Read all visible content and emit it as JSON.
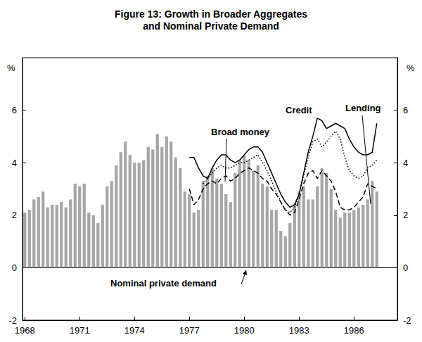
{
  "chart_data": {
    "type": "bar",
    "title": "Figure 13: Growth in Broader Aggregates\nand Nominal Private Demand",
    "categories": [
      "1968",
      null,
      null,
      null,
      null,
      null,
      null,
      null,
      null,
      null,
      null,
      null,
      "1971",
      null,
      null,
      null,
      null,
      null,
      null,
      null,
      null,
      null,
      null,
      null,
      "1974",
      null,
      null,
      null,
      null,
      null,
      null,
      null,
      null,
      null,
      null,
      null,
      "1977",
      null,
      null,
      null,
      null,
      null,
      null,
      null,
      null,
      null,
      null,
      null,
      "1980",
      null,
      null,
      null,
      null,
      null,
      null,
      null,
      null,
      null,
      null,
      null,
      "1983",
      null,
      null,
      null,
      null,
      null,
      null,
      null,
      null,
      null,
      null,
      null,
      "1986",
      null,
      null,
      null,
      null,
      null,
      null,
      null,
      null,
      null
    ],
    "series": [
      {
        "name": "Nominal private demand",
        "type": "bar",
        "color": "#a6a6a6",
        "values": [
          2.1,
          2.2,
          2.6,
          2.7,
          2.9,
          2.3,
          2.4,
          2.4,
          2.5,
          2.3,
          2.6,
          3.2,
          3.1,
          3.2,
          2.1,
          2.0,
          1.7,
          2.4,
          3.1,
          3.3,
          3.9,
          4.4,
          4.8,
          4.3,
          4.0,
          4.0,
          4.1,
          4.6,
          4.5,
          5.1,
          4.6,
          5.0,
          4.8,
          4.2,
          3.8,
          2.9,
          2.8,
          2.1,
          2.2,
          3.3,
          3.5,
          3.8,
          3.4,
          3.2,
          2.8,
          2.5,
          3.6,
          4.1,
          4.3,
          4.1,
          3.7,
          3.9,
          3.2,
          3.1,
          2.2,
          2.2,
          1.4,
          1.2,
          1.7,
          2.4,
          2.9,
          3.1,
          2.6,
          2.6,
          3.1,
          3.8,
          3.6,
          3.0,
          2.2,
          1.9,
          2.1,
          2.1,
          2.2,
          2.3,
          2.4,
          2.6,
          3.3,
          2.9,
          null,
          null,
          null,
          null
        ]
      },
      {
        "name": "Credit",
        "type": "line",
        "color": "#000000",
        "line_style": "solid",
        "values": [
          null,
          null,
          null,
          null,
          null,
          null,
          null,
          null,
          null,
          null,
          null,
          null,
          null,
          null,
          null,
          null,
          null,
          null,
          null,
          null,
          null,
          null,
          null,
          null,
          null,
          null,
          null,
          null,
          null,
          null,
          null,
          null,
          null,
          null,
          null,
          null,
          4.2,
          4.2,
          3.8,
          3.5,
          3.4,
          3.8,
          4.1,
          4.3,
          4.3,
          4.1,
          4.0,
          4.1,
          4.3,
          4.5,
          4.6,
          4.6,
          4.4,
          4.0,
          3.6,
          3.2,
          2.8,
          2.5,
          2.3,
          2.4,
          2.8,
          3.6,
          4.4,
          5.0,
          5.7,
          5.6,
          5.3,
          5.4,
          5.5,
          5.4,
          5.3,
          4.9,
          4.6,
          4.4,
          4.3,
          4.3,
          4.4,
          5.5,
          null,
          null,
          null,
          null
        ]
      },
      {
        "name": "Lending",
        "type": "line",
        "color": "#000000",
        "line_style": "dotted",
        "values": [
          null,
          null,
          null,
          null,
          null,
          null,
          null,
          null,
          null,
          null,
          null,
          null,
          null,
          null,
          null,
          null,
          null,
          null,
          null,
          null,
          null,
          null,
          null,
          null,
          null,
          null,
          null,
          null,
          null,
          null,
          null,
          null,
          null,
          null,
          null,
          null,
          null,
          null,
          null,
          3.2,
          3.4,
          3.6,
          3.8,
          3.9,
          3.8,
          3.8,
          3.9,
          4.0,
          4.0,
          4.1,
          4.2,
          4.3,
          4.0,
          3.7,
          3.3,
          2.9,
          2.5,
          2.2,
          2.1,
          2.3,
          2.8,
          3.5,
          4.2,
          4.8,
          4.9,
          4.6,
          4.8,
          5.0,
          5.2,
          4.9,
          4.2,
          3.7,
          3.5,
          3.4,
          3.5,
          3.8,
          3.9,
          4.1,
          null,
          null,
          null,
          null
        ]
      },
      {
        "name": "Broad money",
        "type": "line",
        "color": "#000000",
        "line_style": "dashed",
        "values": [
          null,
          null,
          null,
          null,
          null,
          null,
          null,
          null,
          null,
          null,
          null,
          null,
          null,
          null,
          null,
          null,
          null,
          null,
          null,
          null,
          null,
          null,
          null,
          null,
          null,
          null,
          null,
          null,
          null,
          null,
          null,
          null,
          null,
          null,
          null,
          null,
          3.0,
          2.4,
          2.6,
          3.0,
          3.2,
          3.3,
          3.2,
          3.4,
          3.5,
          3.3,
          3.4,
          3.6,
          3.7,
          3.8,
          3.7,
          3.6,
          3.4,
          3.3,
          3.0,
          2.8,
          2.5,
          2.2,
          2.0,
          2.1,
          2.6,
          3.2,
          3.6,
          3.7,
          3.4,
          3.7,
          3.5,
          3.3,
          2.9,
          2.3,
          2.2,
          2.2,
          2.3,
          2.5,
          2.7,
          3.2,
          3.1,
          3.0,
          null,
          null,
          null,
          null
        ]
      }
    ],
    "y_label": "%",
    "y2_label": "%",
    "ylim": [
      -2,
      8
    ],
    "yticks": [
      -2,
      0,
      2,
      4,
      6
    ],
    "y2lim": [
      -2,
      8
    ],
    "y2ticks": [
      -2,
      0,
      2,
      4,
      6
    ],
    "grid": false
  }
}
